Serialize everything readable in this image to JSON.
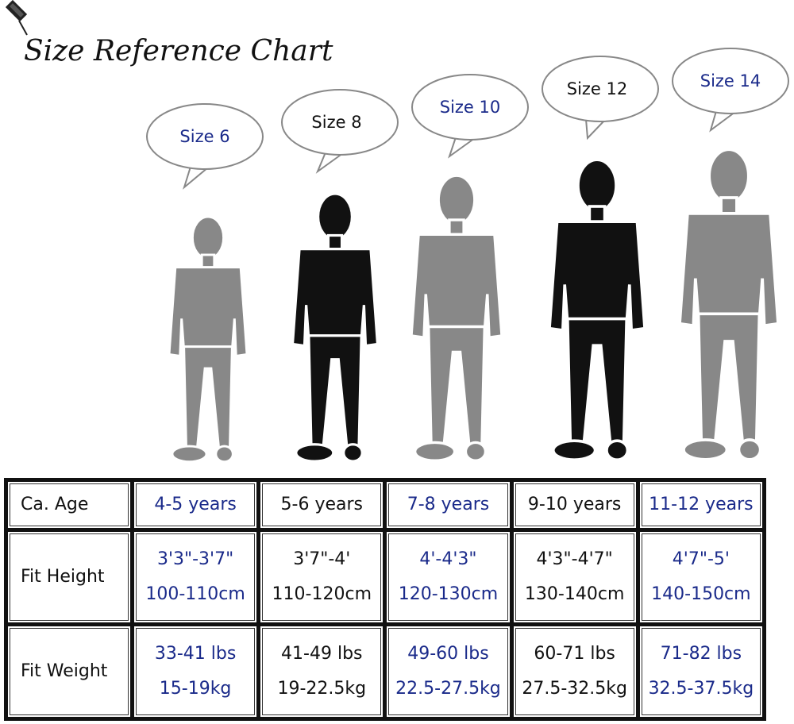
{
  "title": "Size Reference Chart",
  "sizes": [
    "Size 6",
    "Size 8",
    "Size 10",
    "Size 12",
    "Size 14"
  ],
  "table": {
    "rows": [
      {
        "label": "Ca. Age",
        "cells": [
          [
            "4-5 years"
          ],
          [
            "5-6 years"
          ],
          [
            "7-8 years"
          ],
          [
            "9-10 years"
          ],
          [
            "11-12 years"
          ]
        ]
      },
      {
        "label": "Fit Height",
        "cells": [
          [
            "3'3\"-3'7\"",
            "100-110cm"
          ],
          [
            "3'7\"-4'",
            "110-120cm"
          ],
          [
            "4'-4'3\"",
            "120-130cm"
          ],
          [
            "4'3\"-4'7\"",
            "130-140cm"
          ],
          [
            "4'7\"-5'",
            "140-150cm"
          ]
        ]
      },
      {
        "label": "Fit Weight",
        "cells": [
          [
            "33-41 lbs",
            "15-19kg"
          ],
          [
            "41-49 lbs",
            "19-22.5kg"
          ],
          [
            "49-60 lbs",
            "22.5-27.5kg"
          ],
          [
            "60-71 lbs",
            "27.5-32.5kg"
          ],
          [
            "71-82 lbs",
            "32.5-37.5kg"
          ]
        ]
      }
    ]
  }
}
